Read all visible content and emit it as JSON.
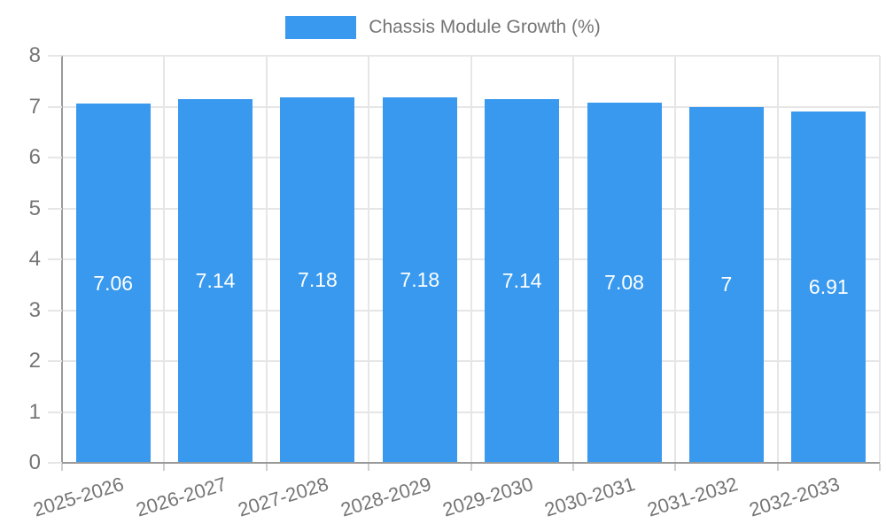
{
  "chart_data": {
    "type": "bar",
    "title": "Chassis Module Growth (%)",
    "categories": [
      "2025-2026",
      "2026-2027",
      "2027-2028",
      "2028-2029",
      "2029-2030",
      "2030-2031",
      "2031-2032",
      "2032-2033"
    ],
    "series": [
      {
        "name": "Chassis Module Growth (%)",
        "values": [
          7.06,
          7.14,
          7.18,
          7.18,
          7.14,
          7.08,
          7,
          6.91
        ]
      }
    ],
    "value_labels": [
      "7.06",
      "7.14",
      "7.18",
      "7.18",
      "7.14",
      "7.08",
      "7",
      "6.91"
    ],
    "xlabel": "",
    "ylabel": "",
    "ylim": [
      0,
      8
    ],
    "y_ticks": [
      0,
      1,
      2,
      3,
      4,
      5,
      6,
      7,
      8
    ],
    "grid": true,
    "legend_position": "top-center",
    "colors": {
      "bar": "#3899ee",
      "grid": "#e6e6e6",
      "axis": "#9a9a9a",
      "x_tick_mark": "#cfcfcf",
      "tick_text": "#757575",
      "value_label": "#ffffff",
      "background": "#ffffff"
    }
  }
}
